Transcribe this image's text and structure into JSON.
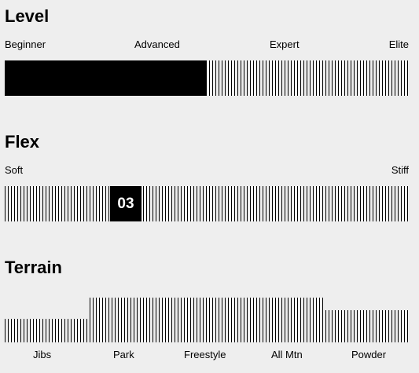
{
  "level": {
    "title": "Level",
    "labels": [
      "Beginner",
      "Advanced",
      "Expert",
      "Elite"
    ],
    "fill_fraction": 0.5
  },
  "flex": {
    "title": "Flex",
    "labels": [
      "Soft",
      "Stiff"
    ],
    "value": "03"
  },
  "terrain": {
    "title": "Terrain",
    "labels": [
      "Jibs",
      "Park",
      "Freestyle",
      "All Mtn",
      "Powder"
    ],
    "levels": [
      0.52,
      1.0,
      1.0,
      1.0,
      0.72
    ]
  }
}
